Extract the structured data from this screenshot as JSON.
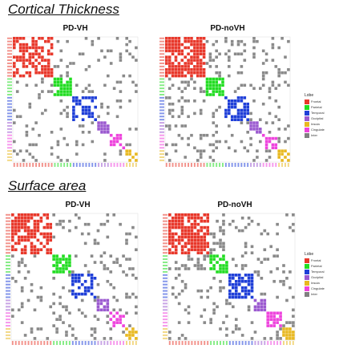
{
  "sections": [
    {
      "title": "Cortical Thickness"
    },
    {
      "title": "Surface area"
    }
  ],
  "legend": {
    "title": "Lobe",
    "items": [
      {
        "label": "Frontal",
        "color": "#e8382b"
      },
      {
        "label": "Parietal",
        "color": "#22dd22"
      },
      {
        "label": "Temporal",
        "color": "#1f3fd8"
      },
      {
        "label": "Occipital",
        "color": "#9b59d0"
      },
      {
        "label": "Insula",
        "color": "#e8b820"
      },
      {
        "label": "Cingulate",
        "color": "#ee44dd"
      },
      {
        "label": "Inter",
        "color": "#808080"
      }
    ]
  },
  "chart_data": [
    {
      "type": "heatmap",
      "title": "PD-VH",
      "lobe_blocks": [
        {
          "lobe": "Frontal",
          "start": 0,
          "size": 13,
          "color": "#e8382b"
        },
        {
          "lobe": "Parietal",
          "start": 13,
          "size": 6,
          "color": "#22dd22"
        },
        {
          "lobe": "Temporal",
          "start": 19,
          "size": 8,
          "color": "#1f3fd8"
        },
        {
          "lobe": "Occipital",
          "start": 27,
          "size": 4,
          "color": "#9b59d0"
        },
        {
          "lobe": "Cingulate",
          "start": 31,
          "size": 5,
          "color": "#ee44dd"
        },
        {
          "lobe": "Insula",
          "start": 36,
          "size": 4,
          "color": "#e8b820"
        }
      ],
      "n_regions": 40,
      "connection_density": 0.12,
      "block_density": 0.55,
      "seed": 11
    },
    {
      "type": "heatmap",
      "title": "PD-noVH",
      "lobe_blocks": [
        {
          "lobe": "Frontal",
          "start": 0,
          "size": 13,
          "color": "#e8382b"
        },
        {
          "lobe": "Parietal",
          "start": 13,
          "size": 6,
          "color": "#22dd22"
        },
        {
          "lobe": "Temporal",
          "start": 19,
          "size": 8,
          "color": "#1f3fd8"
        },
        {
          "lobe": "Occipital",
          "start": 27,
          "size": 4,
          "color": "#9b59d0"
        },
        {
          "lobe": "Cingulate",
          "start": 31,
          "size": 5,
          "color": "#ee44dd"
        },
        {
          "lobe": "Insula",
          "start": 36,
          "size": 4,
          "color": "#e8b820"
        }
      ],
      "n_regions": 40,
      "connection_density": 0.14,
      "block_density": 0.75,
      "seed": 23
    },
    {
      "type": "heatmap",
      "title": "PD-VH",
      "lobe_blocks": [
        {
          "lobe": "Frontal",
          "start": 0,
          "size": 13,
          "color": "#e8382b"
        },
        {
          "lobe": "Parietal",
          "start": 13,
          "size": 6,
          "color": "#22dd22"
        },
        {
          "lobe": "Temporal",
          "start": 19,
          "size": 8,
          "color": "#1f3fd8"
        },
        {
          "lobe": "Occipital",
          "start": 27,
          "size": 4,
          "color": "#9b59d0"
        },
        {
          "lobe": "Cingulate",
          "start": 31,
          "size": 5,
          "color": "#ee44dd"
        },
        {
          "lobe": "Insula",
          "start": 36,
          "size": 4,
          "color": "#e8b820"
        }
      ],
      "n_regions": 40,
      "connection_density": 0.12,
      "block_density": 0.6,
      "seed": 37
    },
    {
      "type": "heatmap",
      "title": "PD-noVH",
      "lobe_blocks": [
        {
          "lobe": "Frontal",
          "start": 0,
          "size": 13,
          "color": "#e8382b"
        },
        {
          "lobe": "Parietal",
          "start": 13,
          "size": 6,
          "color": "#22dd22"
        },
        {
          "lobe": "Temporal",
          "start": 19,
          "size": 8,
          "color": "#1f3fd8"
        },
        {
          "lobe": "Occipital",
          "start": 27,
          "size": 4,
          "color": "#9b59d0"
        },
        {
          "lobe": "Cingulate",
          "start": 31,
          "size": 5,
          "color": "#ee44dd"
        },
        {
          "lobe": "Insula",
          "start": 36,
          "size": 4,
          "color": "#e8b820"
        }
      ],
      "n_regions": 40,
      "connection_density": 0.14,
      "block_density": 0.8,
      "seed": 51
    }
  ]
}
